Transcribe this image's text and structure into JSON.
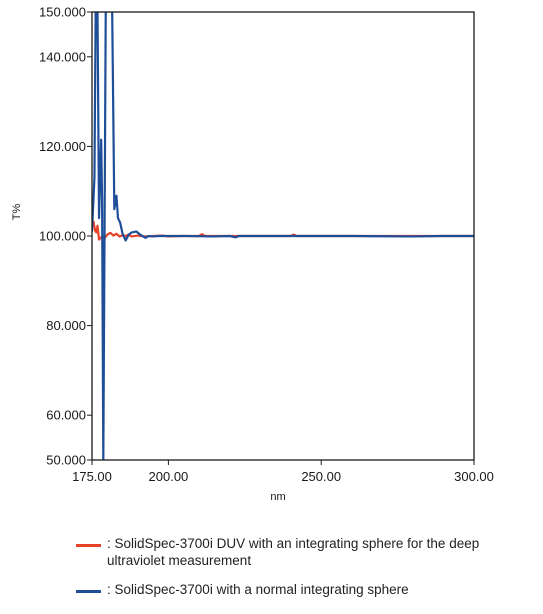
{
  "chart_data": {
    "type": "line",
    "title": "",
    "xlabel": "nm",
    "ylabel": "T%",
    "xlim": [
      175,
      300
    ],
    "ylim": [
      50,
      150
    ],
    "xticks": [
      175,
      200,
      250,
      300
    ],
    "xtick_labels": [
      "175.00",
      "200.00",
      "250.00",
      "300.00"
    ],
    "yticks": [
      50,
      60,
      80,
      100,
      120,
      140,
      150
    ],
    "ytick_labels": [
      "50.000",
      "60.000",
      "80.000",
      "100.000",
      "120.000",
      "140.000",
      "150.000"
    ],
    "grid": false,
    "legend_position": "below",
    "series": [
      {
        "name": ": SolidSpec-3700i DUV with an integrating sphere for the deep ultraviolet measurement",
        "color": "#e8432a",
        "x": [
          175,
          175.5,
          176,
          176.4,
          176.8,
          177.3,
          177.8,
          178.5,
          179.2,
          180,
          181,
          182,
          183,
          184,
          185,
          186,
          187,
          188,
          190,
          192,
          195,
          198,
          200,
          205,
          210,
          211,
          212,
          220,
          240,
          241,
          242,
          260,
          280,
          300
        ],
        "y": [
          102.8,
          103.2,
          101.2,
          100.8,
          102.3,
          99.2,
          99.6,
          99.8,
          99.6,
          100.3,
          100.7,
          100.1,
          100.5,
          99.9,
          100.2,
          100.0,
          100.3,
          99.9,
          100.1,
          99.9,
          100.0,
          100.1,
          99.9,
          100.0,
          100.0,
          100.4,
          100.0,
          100.0,
          100.0,
          100.3,
          100.0,
          100.0,
          100.0,
          100.0
        ]
      },
      {
        "name": ": SolidSpec-3700i with a normal integrating sphere",
        "color": "#1f4e99",
        "x": [
          175,
          175.8,
          176.2,
          176.8,
          177.3,
          177.7,
          178.0,
          178.3,
          178.7,
          179.5,
          180.2,
          181.0,
          181.6,
          182.3,
          183.0,
          183.5,
          184.2,
          185.0,
          186.0,
          187.0,
          188.0,
          189.5,
          191.0,
          192.5,
          193.5,
          195.0,
          197.0,
          200.0,
          205.0,
          215.0,
          220.0,
          222.0,
          223.0,
          260.0,
          280.0,
          290.0,
          300.0
        ],
        "y": [
          101.0,
          113.0,
          150.5,
          150.5,
          104.0,
          114.5,
          121.5,
          108.0,
          50.0,
          150.5,
          150.5,
          150.5,
          150.5,
          106.0,
          109.0,
          104.0,
          103.0,
          100.5,
          99.0,
          100.3,
          100.8,
          101.0,
          100.2,
          99.6,
          100.0,
          99.9,
          100.0,
          100.0,
          100.0,
          99.9,
          100.0,
          99.7,
          100.0,
          100.0,
          99.9,
          100.0,
          100.0
        ]
      }
    ]
  }
}
